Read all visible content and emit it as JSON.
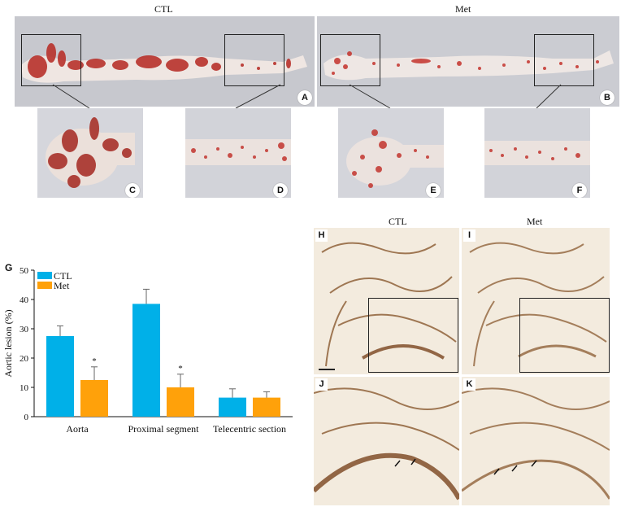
{
  "top": {
    "header_ctl": "CTL",
    "header_met": "Met",
    "panels": {
      "a": "A",
      "b": "B",
      "c": "C",
      "d": "D",
      "e": "E",
      "f": "F"
    }
  },
  "chart": {
    "panel_label": "G",
    "legend": [
      "CTL",
      "Met"
    ],
    "colors": {
      "ctl": "#00b0e8",
      "met": "#ffa10a"
    }
  },
  "histology": {
    "header_ctl": "CTL",
    "header_met": "Met",
    "panels": {
      "h": "H",
      "i": "I",
      "j": "J",
      "k": "K"
    }
  },
  "chart_data": {
    "type": "bar",
    "categories": [
      "Aorta",
      "Proximal segment",
      "Telecentric section"
    ],
    "series": [
      {
        "name": "CTL",
        "values": [
          27.5,
          38.5,
          6.5
        ],
        "errors": [
          3.5,
          5,
          3
        ]
      },
      {
        "name": "Met",
        "values": [
          12.5,
          10,
          6.5
        ],
        "errors": [
          4.5,
          4.5,
          2
        ]
      }
    ],
    "significance": [
      "*",
      "*",
      ""
    ],
    "ylabel": "Aortic lesion (%)",
    "yticks": [
      0,
      10,
      20,
      30,
      40,
      50
    ],
    "ylim": [
      0,
      50
    ],
    "legend_position": "top-left"
  }
}
